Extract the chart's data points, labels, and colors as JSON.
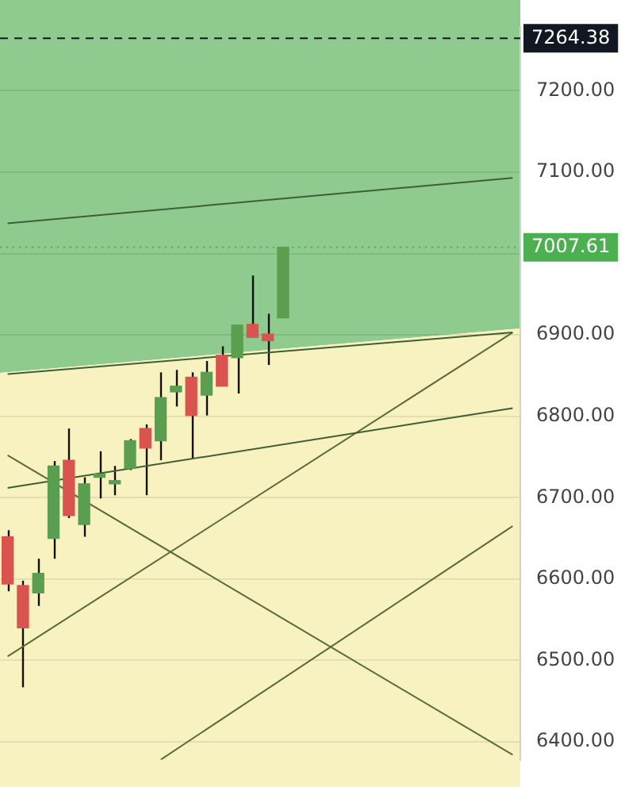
{
  "chart_data": {
    "type": "candlestick",
    "categories": [
      null,
      null,
      null,
      null,
      null,
      null,
      null,
      null,
      null,
      null,
      null,
      null,
      null,
      null,
      null,
      null,
      null,
      null,
      null,
      null,
      null,
      null,
      null,
      null,
      null,
      null,
      null,
      null,
      null,
      null,
      null,
      null,
      null,
      null
    ],
    "ohlc": [
      [
        6652,
        6660,
        6585,
        6594
      ],
      [
        6592,
        6598,
        6467,
        6540
      ],
      [
        6583,
        6625,
        6567,
        6607
      ],
      [
        6650,
        6745,
        6625,
        6739
      ],
      [
        6746,
        6785,
        6675,
        6678
      ],
      [
        6667,
        6725,
        6652,
        6717
      ],
      [
        6727,
        6757,
        6699,
        6725
      ],
      [
        6717,
        6739,
        6703,
        6721
      ],
      [
        6736,
        6772,
        6734,
        6770
      ],
      [
        6785,
        6790,
        6703,
        6761
      ],
      [
        6770,
        6854,
        6746,
        6823
      ],
      [
        6830,
        6857,
        6812,
        6837
      ],
      [
        6848,
        6854,
        6748,
        6801
      ],
      [
        6826,
        6868,
        6801,
        6854
      ],
      [
        6875,
        6886,
        6837,
        6837
      ],
      [
        6872,
        6912,
        6828,
        6912
      ],
      [
        6913,
        6973,
        6897,
        6897
      ],
      [
        6901,
        6926,
        6863,
        6893
      ],
      [
        6921,
        7008,
        6921,
        7007.61
      ],
      null,
      null,
      null,
      null,
      null,
      null,
      null,
      null,
      null,
      null,
      null,
      null,
      null,
      null,
      null
    ],
    "colors": [
      "#d9534f",
      "#d9534f",
      "#5a9e4f",
      "#5a9e4f",
      "#d9534f",
      "#5a9e4f",
      "#5a9e4f",
      "#5a9e4f",
      "#5a9e4f",
      "#d9534f",
      "#5a9e4f",
      "#5a9e4f",
      "#d9534f",
      "#5a9e4f",
      "#d9534f",
      "#5a9e4f",
      "#d9534f",
      "#d9534f",
      "#5a9e4f",
      null,
      null,
      null,
      null,
      null,
      null,
      null,
      null,
      null,
      null,
      null,
      null,
      null,
      null,
      null
    ],
    "series": [
      {
        "type": "line",
        "color": "#3f5f35",
        "values": [
          7037,
          null,
          null,
          null,
          null,
          null,
          null,
          null,
          null,
          null,
          null,
          null,
          null,
          null,
          null,
          null,
          null,
          null,
          null,
          null,
          null,
          null,
          null,
          null,
          null,
          null,
          null,
          null,
          null,
          null,
          null,
          null,
          null,
          7093
        ]
      },
      {
        "type": "line",
        "color": "#3f5f35",
        "values": [
          6852,
          null,
          null,
          null,
          null,
          null,
          null,
          null,
          null,
          null,
          null,
          null,
          null,
          null,
          null,
          null,
          null,
          null,
          null,
          null,
          null,
          null,
          null,
          null,
          null,
          null,
          null,
          null,
          null,
          null,
          null,
          null,
          null,
          6903
        ]
      },
      {
        "type": "line",
        "color": "#3f5f35",
        "values": [
          6712,
          null,
          null,
          null,
          null,
          null,
          null,
          null,
          null,
          null,
          null,
          null,
          null,
          null,
          null,
          null,
          null,
          null,
          null,
          null,
          null,
          null,
          null,
          null,
          null,
          null,
          null,
          null,
          null,
          null,
          null,
          null,
          null,
          6810
        ]
      },
      {
        "type": "line",
        "color": "#5a6b3a",
        "values": [
          6505,
          null,
          null,
          null,
          null,
          null,
          null,
          null,
          null,
          null,
          null,
          null,
          null,
          null,
          null,
          null,
          null,
          null,
          null,
          null,
          null,
          null,
          null,
          null,
          null,
          null,
          null,
          null,
          null,
          null,
          null,
          null,
          null,
          6903
        ]
      },
      {
        "type": "line",
        "color": "#5a6b3a",
        "values": [
          6752,
          null,
          null,
          null,
          null,
          null,
          null,
          null,
          null,
          null,
          null,
          null,
          null,
          null,
          null,
          null,
          null,
          null,
          null,
          null,
          null,
          null,
          null,
          null,
          null,
          null,
          null,
          null,
          null,
          null,
          null,
          null,
          null,
          6384
        ]
      },
      {
        "type": "line",
        "color": "#5a6b3a",
        "values": [
          null,
          null,
          null,
          null,
          null,
          null,
          null,
          null,
          null,
          null,
          6378,
          null,
          null,
          null,
          null,
          null,
          null,
          null,
          null,
          null,
          null,
          null,
          null,
          null,
          null,
          null,
          null,
          null,
          null,
          null,
          null,
          null,
          null,
          6665
        ]
      }
    ],
    "ylim": [
      6378,
      7278
    ],
    "yticks": [
      {
        "value": 6400,
        "label": "6400.00"
      },
      {
        "value": 6500,
        "label": "6500.00"
      },
      {
        "value": 6600,
        "label": "6600.00"
      },
      {
        "value": 6700,
        "label": "6700.00"
      },
      {
        "value": 6800,
        "label": "6800.00"
      },
      {
        "value": 6900,
        "label": "6900.00"
      },
      {
        "value": 7000,
        "label": null
      },
      {
        "value": 7100,
        "label": "7100.00"
      },
      {
        "value": 7200,
        "label": "7200.00"
      }
    ],
    "ref_lines": [
      {
        "axis": "y",
        "value": 7264.38,
        "label": "7264.38",
        "color": "#131722",
        "line_style": "dashed"
      },
      {
        "axis": "y",
        "value": 7007.61,
        "label": "7007.61",
        "color": "#4caf50",
        "line_style": "dotted"
      }
    ],
    "grid": "y",
    "tick_labels": "y"
  }
}
